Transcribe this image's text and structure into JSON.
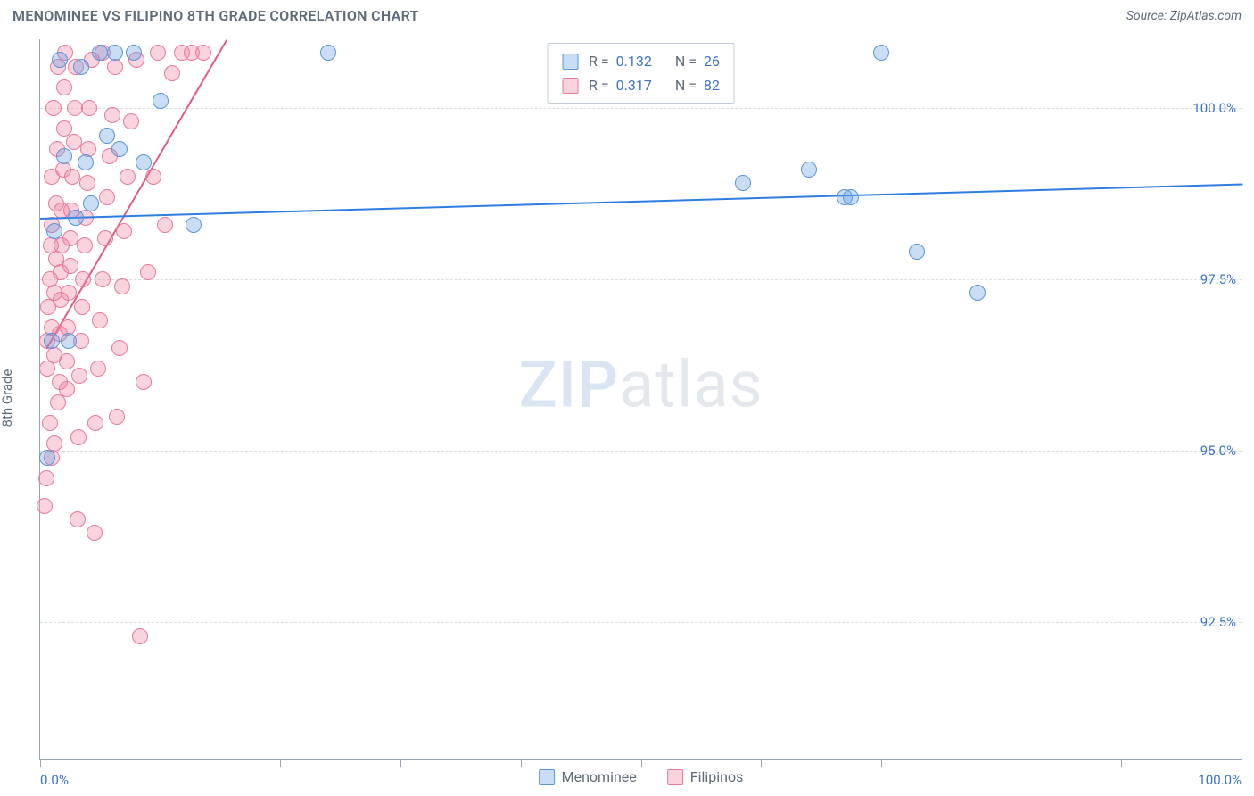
{
  "title": "MENOMINEE VS FILIPINO 8TH GRADE CORRELATION CHART",
  "source": "Source: ZipAtlas.com",
  "y_axis_title": "8th Grade",
  "watermark": {
    "a": "ZIP",
    "b": "atlas"
  },
  "chart": {
    "type": "scatter",
    "background_color": "#ffffff",
    "grid_color": "#d6dde4",
    "axis_color": "#98a6b5",
    "text_color": "#5f6b7a",
    "value_color": "#3b74c9",
    "xlim": [
      0,
      100
    ],
    "ylim": [
      90.5,
      101.0
    ],
    "x_ticks": [
      0,
      10,
      20,
      30,
      40,
      50,
      60,
      70,
      80,
      90,
      100
    ],
    "x_tick_labels": {
      "0": "0.0%",
      "100": "100.0%"
    },
    "y_gridlines": [
      92.5,
      95.0,
      97.5,
      100.0
    ],
    "y_tick_labels": [
      "92.5%",
      "95.0%",
      "97.5%",
      "100.0%"
    ],
    "marker_radius": 9,
    "marker_border_width": 1.5,
    "series": [
      {
        "name": "Menominee",
        "key": "menominee",
        "fill": "rgba(99,158,227,0.35)",
        "stroke": "#5a95d8",
        "R": "0.132",
        "N": "26",
        "trend": {
          "x1": 0,
          "y1": 98.4,
          "x2": 100,
          "y2": 98.9,
          "width": 2,
          "color": "#2f7de1"
        },
        "points": [
          [
            0.6,
            94.9
          ],
          [
            1.0,
            96.6
          ],
          [
            1.2,
            98.2
          ],
          [
            1.6,
            100.7
          ],
          [
            2.0,
            99.3
          ],
          [
            2.4,
            96.6
          ],
          [
            3.0,
            98.4
          ],
          [
            3.4,
            100.6
          ],
          [
            3.8,
            99.2
          ],
          [
            4.2,
            98.6
          ],
          [
            5.0,
            100.8
          ],
          [
            5.6,
            99.6
          ],
          [
            6.2,
            100.8
          ],
          [
            6.6,
            99.4
          ],
          [
            7.8,
            100.8
          ],
          [
            8.6,
            99.2
          ],
          [
            10.0,
            100.1
          ],
          [
            12.8,
            98.3
          ],
          [
            24.0,
            100.8
          ],
          [
            58.5,
            98.9
          ],
          [
            64.0,
            99.1
          ],
          [
            67.0,
            98.7
          ],
          [
            67.5,
            98.7
          ],
          [
            70.0,
            100.8
          ],
          [
            73.0,
            97.9
          ],
          [
            78.0,
            97.3
          ]
        ]
      },
      {
        "name": "Filipinos",
        "key": "filipinos",
        "fill": "rgba(238,130,159,0.35)",
        "stroke": "#e67a9b",
        "R": "0.317",
        "N": "82",
        "trend": {
          "x1": 0.5,
          "y1": 96.5,
          "x2": 15.5,
          "y2": 101.0,
          "width": 2,
          "color": "#e35a84"
        },
        "points": [
          [
            0.4,
            94.2
          ],
          [
            0.5,
            94.6
          ],
          [
            0.6,
            96.2
          ],
          [
            0.6,
            96.6
          ],
          [
            0.7,
            97.1
          ],
          [
            0.8,
            95.4
          ],
          [
            0.8,
            97.5
          ],
          [
            0.9,
            98.0
          ],
          [
            1.0,
            94.9
          ],
          [
            1.0,
            96.8
          ],
          [
            1.0,
            98.3
          ],
          [
            1.0,
            99.0
          ],
          [
            1.1,
            100.0
          ],
          [
            1.2,
            95.1
          ],
          [
            1.2,
            96.4
          ],
          [
            1.2,
            97.3
          ],
          [
            1.3,
            97.8
          ],
          [
            1.3,
            98.6
          ],
          [
            1.4,
            99.4
          ],
          [
            1.5,
            100.6
          ],
          [
            1.5,
            95.7
          ],
          [
            1.6,
            96.0
          ],
          [
            1.6,
            96.7
          ],
          [
            1.7,
            97.2
          ],
          [
            1.7,
            97.6
          ],
          [
            1.8,
            98.0
          ],
          [
            1.8,
            98.5
          ],
          [
            1.9,
            99.1
          ],
          [
            2.0,
            99.7
          ],
          [
            2.0,
            100.3
          ],
          [
            2.1,
            100.8
          ],
          [
            2.2,
            95.9
          ],
          [
            2.2,
            96.3
          ],
          [
            2.3,
            96.8
          ],
          [
            2.4,
            97.3
          ],
          [
            2.5,
            97.7
          ],
          [
            2.5,
            98.1
          ],
          [
            2.6,
            98.5
          ],
          [
            2.7,
            99.0
          ],
          [
            2.8,
            99.5
          ],
          [
            2.9,
            100.0
          ],
          [
            3.0,
            100.6
          ],
          [
            3.1,
            94.0
          ],
          [
            3.2,
            95.2
          ],
          [
            3.3,
            96.1
          ],
          [
            3.4,
            96.6
          ],
          [
            3.5,
            97.1
          ],
          [
            3.6,
            97.5
          ],
          [
            3.7,
            98.0
          ],
          [
            3.8,
            98.4
          ],
          [
            3.9,
            98.9
          ],
          [
            4.0,
            99.4
          ],
          [
            4.1,
            100.0
          ],
          [
            4.3,
            100.7
          ],
          [
            4.5,
            93.8
          ],
          [
            4.6,
            95.4
          ],
          [
            4.8,
            96.2
          ],
          [
            5.0,
            96.9
          ],
          [
            5.2,
            97.5
          ],
          [
            5.4,
            98.1
          ],
          [
            5.6,
            98.7
          ],
          [
            5.8,
            99.3
          ],
          [
            6.0,
            99.9
          ],
          [
            6.2,
            100.6
          ],
          [
            6.4,
            95.5
          ],
          [
            6.6,
            96.5
          ],
          [
            6.8,
            97.4
          ],
          [
            7.0,
            98.2
          ],
          [
            7.3,
            99.0
          ],
          [
            7.6,
            99.8
          ],
          [
            8.0,
            100.7
          ],
          [
            8.3,
            92.3
          ],
          [
            8.6,
            96.0
          ],
          [
            9.0,
            97.6
          ],
          [
            9.4,
            99.0
          ],
          [
            9.8,
            100.8
          ],
          [
            10.4,
            98.3
          ],
          [
            11.0,
            100.5
          ],
          [
            11.8,
            100.8
          ],
          [
            12.6,
            100.8
          ],
          [
            13.6,
            100.8
          ],
          [
            5.2,
            100.8
          ]
        ]
      }
    ]
  },
  "legend_bottom": [
    {
      "label": "Menominee",
      "fill": "rgba(99,158,227,0.35)",
      "stroke": "#5a95d8"
    },
    {
      "label": "Filipinos",
      "fill": "rgba(238,130,159,0.35)",
      "stroke": "#e67a9b"
    }
  ]
}
